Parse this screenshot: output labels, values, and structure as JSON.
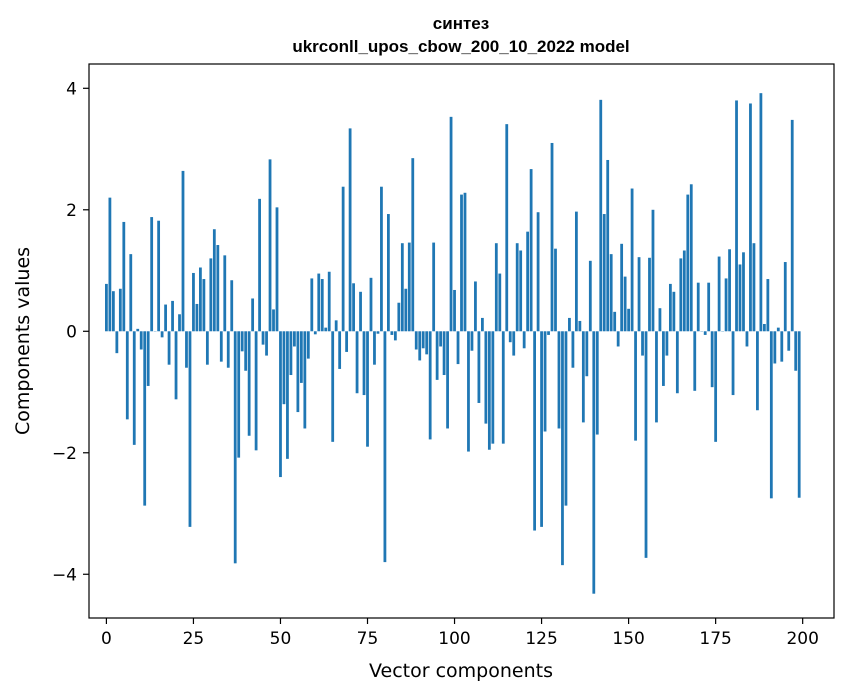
{
  "chart_data": {
    "type": "bar",
    "title": "синтез",
    "subtitle": "ukrconll_upos_cbow_200_10_2022 model",
    "xlabel": "Vector components",
    "ylabel": "Components values",
    "xlim": [
      -5,
      209
    ],
    "ylim": [
      -4.72,
      4.4
    ],
    "xticks": [
      0,
      25,
      50,
      75,
      100,
      125,
      150,
      175,
      200
    ],
    "yticks": [
      -4,
      -2,
      0,
      2,
      4
    ],
    "ytick_labels": [
      "−4",
      "−2",
      "0",
      "2",
      "4"
    ],
    "bar_color": "#1f77b4",
    "grid": false,
    "values": [
      0.78,
      2.2,
      0.66,
      -0.36,
      0.7,
      1.8,
      -1.45,
      1.27,
      -1.87,
      0.04,
      -0.3,
      -2.87,
      -0.9,
      1.88,
      0.0,
      1.82,
      -0.1,
      0.44,
      -0.55,
      0.5,
      -1.12,
      0.28,
      2.64,
      -0.6,
      -3.22,
      0.96,
      0.45,
      1.05,
      0.86,
      -0.55,
      1.2,
      1.68,
      1.42,
      -0.5,
      1.25,
      -0.6,
      0.84,
      -3.82,
      -2.08,
      -0.33,
      -0.65,
      -1.72,
      0.54,
      -1.96,
      2.18,
      -0.22,
      -0.4,
      2.83,
      0.36,
      2.04,
      -2.4,
      -1.2,
      -2.1,
      -0.72,
      -0.25,
      -1.33,
      -0.85,
      -1.6,
      -0.45,
      0.87,
      -0.05,
      0.95,
      0.86,
      0.06,
      0.98,
      -1.82,
      0.18,
      -0.62,
      2.38,
      -0.34,
      3.34,
      0.79,
      -1.02,
      0.65,
      -1.05,
      -1.9,
      0.88,
      -0.55,
      -0.04,
      2.38,
      -3.8,
      1.93,
      -0.06,
      -0.15,
      0.47,
      1.45,
      0.7,
      1.46,
      2.85,
      -0.3,
      -0.48,
      -0.28,
      -0.38,
      -1.78,
      1.46,
      -0.8,
      -0.25,
      -0.72,
      -1.6,
      3.53,
      0.68,
      -0.54,
      2.25,
      2.28,
      -1.98,
      -0.32,
      0.82,
      -1.18,
      0.22,
      -1.52,
      -1.95,
      -1.85,
      1.45,
      0.95,
      -1.85,
      3.41,
      -0.18,
      -0.4,
      1.45,
      1.33,
      -0.28,
      1.64,
      2.67,
      -3.28,
      1.96,
      -3.22,
      -1.65,
      -0.06,
      3.1,
      1.36,
      -1.6,
      -3.85,
      -2.87,
      0.22,
      -0.6,
      1.97,
      0.17,
      -1.5,
      -0.74,
      1.16,
      -4.32,
      -1.7,
      3.81,
      1.93,
      2.82,
      1.27,
      0.32,
      -0.25,
      1.44,
      0.9,
      0.37,
      2.35,
      -1.8,
      1.22,
      -0.4,
      -3.73,
      1.21,
      2.0,
      -1.5,
      0.38,
      -0.9,
      -0.4,
      0.78,
      0.65,
      -1.02,
      1.2,
      1.33,
      2.25,
      2.42,
      -0.98,
      0.8,
      0.0,
      -0.06,
      0.8,
      -0.92,
      -1.82,
      1.23,
      0.0,
      0.87,
      1.35,
      -1.05,
      3.8,
      1.1,
      1.3,
      -0.25,
      3.75,
      1.45,
      -1.3,
      3.92,
      0.12,
      0.86,
      -2.75,
      -0.53,
      0.06,
      -0.5,
      1.14,
      -0.32,
      3.48,
      -0.65,
      -2.74
    ]
  }
}
